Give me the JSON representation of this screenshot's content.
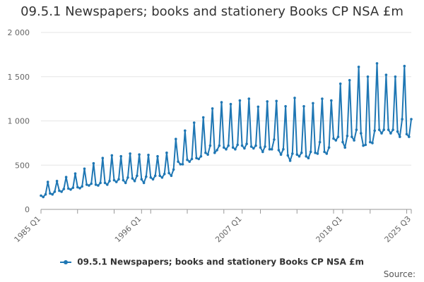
{
  "chart_data": {
    "type": "line",
    "title": "09.5.1 Newspapers; books and stationery Books CP NSA £m",
    "source_label": "Source:",
    "xlabel": "",
    "ylabel": "",
    "ylim": [
      0,
      2000
    ],
    "yticks": [
      0,
      500,
      1000,
      1500,
      2000
    ],
    "ytick_labels": [
      "0",
      "500",
      "1 000",
      "1 500",
      "2 000"
    ],
    "xtick_labels": [
      "1985 Q1",
      "1996 Q1",
      "2007 Q1",
      "2018 Q1",
      "2025 Q3"
    ],
    "start": {
      "year": 1985,
      "quarter": 1
    },
    "series": [
      {
        "name": "09.5.1 Newspapers; books and stationery Books CP NSA £m",
        "color": "#1f77b4",
        "values": [
          155,
          140,
          170,
          310,
          180,
          170,
          200,
          320,
          210,
          200,
          230,
          365,
          235,
          225,
          245,
          405,
          250,
          240,
          260,
          460,
          280,
          270,
          290,
          520,
          280,
          270,
          300,
          580,
          300,
          280,
          320,
          610,
          330,
          310,
          340,
          600,
          330,
          300,
          360,
          630,
          350,
          320,
          380,
          620,
          340,
          300,
          370,
          615,
          360,
          340,
          380,
          600,
          380,
          360,
          400,
          640,
          410,
          380,
          450,
          795,
          540,
          510,
          510,
          890,
          560,
          540,
          570,
          980,
          580,
          570,
          600,
          1040,
          640,
          620,
          720,
          1140,
          640,
          670,
          720,
          1210,
          700,
          680,
          720,
          1190,
          700,
          680,
          730,
          1230,
          720,
          690,
          740,
          1250,
          710,
          690,
          720,
          1160,
          700,
          650,
          710,
          1220,
          680,
          680,
          790,
          1225,
          670,
          620,
          680,
          1165,
          610,
          550,
          630,
          1260,
          620,
          600,
          640,
          1165,
          600,
          580,
          650,
          1200,
          640,
          630,
          760,
          1250,
          650,
          630,
          700,
          1230,
          800,
          780,
          820,
          1420,
          760,
          700,
          830,
          1460,
          820,
          780,
          900,
          1610,
          860,
          720,
          730,
          1500,
          760,
          750,
          890,
          1650,
          900,
          860,
          900,
          1520,
          900,
          860,
          900,
          1500,
          880,
          820,
          1020,
          1620,
          850,
          820,
          1020
        ]
      }
    ]
  }
}
